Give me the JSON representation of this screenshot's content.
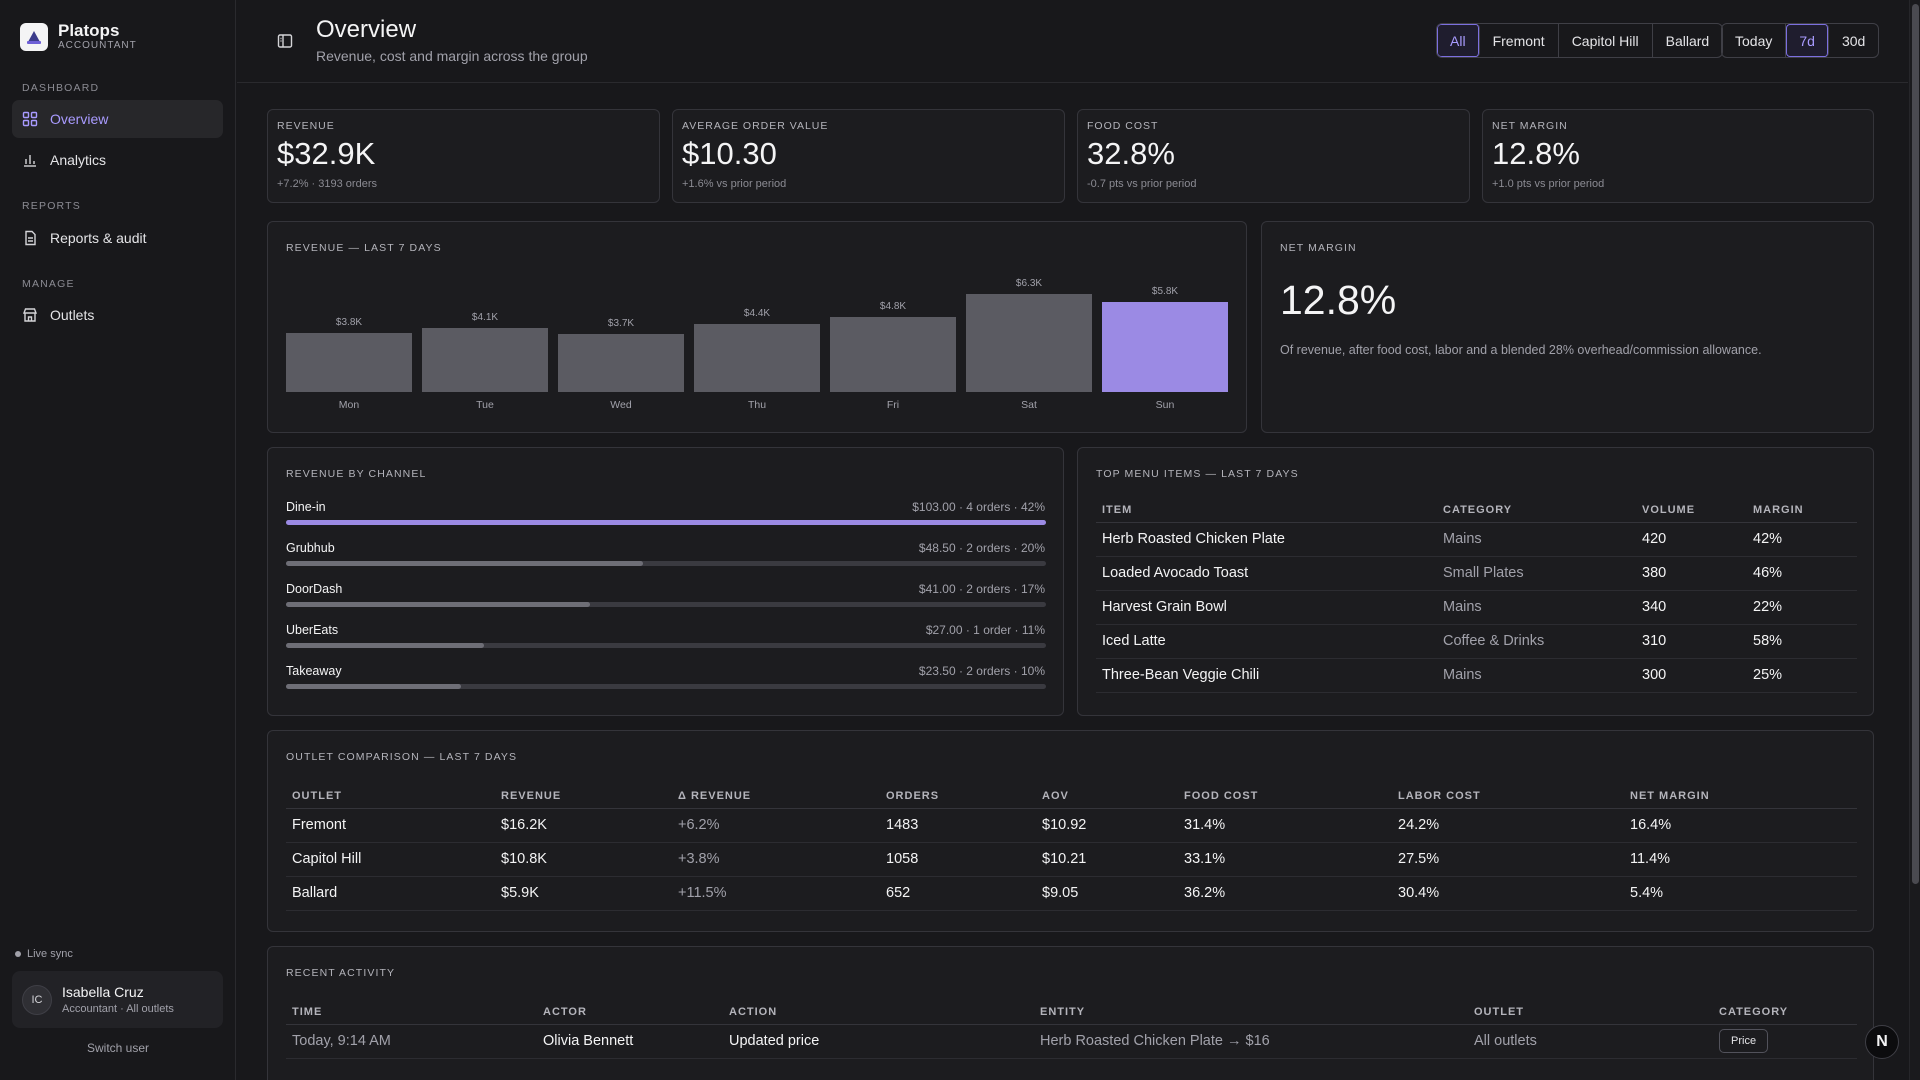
{
  "brand": {
    "name": "Platops",
    "sub": "ACCOUNTANT"
  },
  "nav": {
    "sections": [
      "DASHBOARD",
      "REPORTS",
      "MANAGE"
    ],
    "items": [
      {
        "label": "Overview",
        "icon": "grid-icon",
        "active": true
      },
      {
        "label": "Analytics",
        "icon": "bar-chart-icon"
      },
      {
        "label": "Reports & audit",
        "icon": "document-icon"
      },
      {
        "label": "Outlets",
        "icon": "store-icon"
      }
    ]
  },
  "sidebar_footer": {
    "live": "Live sync",
    "user_initials": "IC",
    "user_name": "Isabella Cruz",
    "user_role": "Accountant · All outlets",
    "switch": "Switch user"
  },
  "header": {
    "title": "Overview",
    "subtitle": "Revenue, cost and margin across the group",
    "outlet_filter": [
      "All",
      "Fremont",
      "Capitol Hill",
      "Ballard"
    ],
    "outlet_selected": "All",
    "range_filter": [
      "Today",
      "7d",
      "30d"
    ],
    "range_selected": "7d"
  },
  "kpis": [
    {
      "label": "REVENUE",
      "value": "$32.9K",
      "delta": "+7.2% · 3193 orders"
    },
    {
      "label": "AVERAGE ORDER VALUE",
      "value": "$10.30",
      "delta": "+1.6% vs prior period"
    },
    {
      "label": "FOOD COST",
      "value": "32.8%",
      "delta": "-0.7 pts vs prior period"
    },
    {
      "label": "NET MARGIN",
      "value": "12.8%",
      "delta": "+1.0 pts vs prior period"
    }
  ],
  "revenue_chart_title": "REVENUE — LAST 7 DAYS",
  "chart_data": {
    "type": "bar",
    "categories": [
      "Mon",
      "Tue",
      "Wed",
      "Thu",
      "Fri",
      "Sat",
      "Sun"
    ],
    "values": [
      3.8,
      4.1,
      3.7,
      4.4,
      4.8,
      6.3,
      5.8
    ],
    "value_labels": [
      "$3.8K",
      "$4.1K",
      "$3.7K",
      "$4.4K",
      "$4.8K",
      "$6.3K",
      "$5.8K"
    ],
    "highlight": "Sun",
    "title": "REVENUE — LAST 7 DAYS",
    "colors": {
      "bar": "#5b5b62",
      "highlight": "#9b8ae4"
    }
  },
  "net_margin_card": {
    "title": "NET MARGIN",
    "value": "12.8%",
    "note": "Of revenue, after food cost, labor and a blended 28% overhead/commission allowance."
  },
  "channels": {
    "title": "REVENUE BY CHANNEL",
    "rows": [
      {
        "name": "Dine-in",
        "meta": "$103.00 · 4 orders · 42%",
        "share": 1.0
      },
      {
        "name": "Grubhub",
        "meta": "$48.50 · 2 orders · 20%",
        "share": 0.47
      },
      {
        "name": "DoorDash",
        "meta": "$41.00 · 2 orders · 17%",
        "share": 0.4
      },
      {
        "name": "UberEats",
        "meta": "$27.00 · 1 order · 11%",
        "share": 0.26
      },
      {
        "name": "Takeaway",
        "meta": "$23.50 · 2 orders · 10%",
        "share": 0.23
      }
    ]
  },
  "top_items": {
    "title": "TOP MENU ITEMS — LAST 7 DAYS",
    "columns": [
      "ITEM",
      "CATEGORY",
      "VOLUME",
      "MARGIN"
    ],
    "rows": [
      [
        "Herb Roasted Chicken Plate",
        "Mains",
        "420",
        "42%"
      ],
      [
        "Loaded Avocado Toast",
        "Small Plates",
        "380",
        "46%"
      ],
      [
        "Harvest Grain Bowl",
        "Mains",
        "340",
        "22%"
      ],
      [
        "Iced Latte",
        "Coffee & Drinks",
        "310",
        "58%"
      ],
      [
        "Three-Bean Veggie Chili",
        "Mains",
        "300",
        "25%"
      ]
    ]
  },
  "outlets": {
    "title": "OUTLET COMPARISON — LAST 7 DAYS",
    "columns": [
      "OUTLET",
      "REVENUE",
      "Δ REVENUE",
      "ORDERS",
      "AOV",
      "FOOD COST",
      "LABOR COST",
      "NET MARGIN"
    ],
    "rows": [
      [
        "Fremont",
        "$16.2K",
        "+6.2%",
        "1483",
        "$10.92",
        "31.4%",
        "24.2%",
        "16.4%"
      ],
      [
        "Capitol Hill",
        "$10.8K",
        "+3.8%",
        "1058",
        "$10.21",
        "33.1%",
        "27.5%",
        "11.4%"
      ],
      [
        "Ballard",
        "$5.9K",
        "+11.5%",
        "652",
        "$9.05",
        "36.2%",
        "30.4%",
        "5.4%"
      ]
    ]
  },
  "activity": {
    "title": "RECENT ACTIVITY",
    "columns": [
      "TIME",
      "ACTOR",
      "ACTION",
      "ENTITY",
      "OUTLET",
      "CATEGORY"
    ],
    "rows": [
      [
        "Today, 9:14 AM",
        "Olivia Bennett",
        "Updated price",
        "Herb Roasted Chicken Plate → $16",
        "All outlets",
        "Price"
      ]
    ]
  },
  "fab_label": "N"
}
